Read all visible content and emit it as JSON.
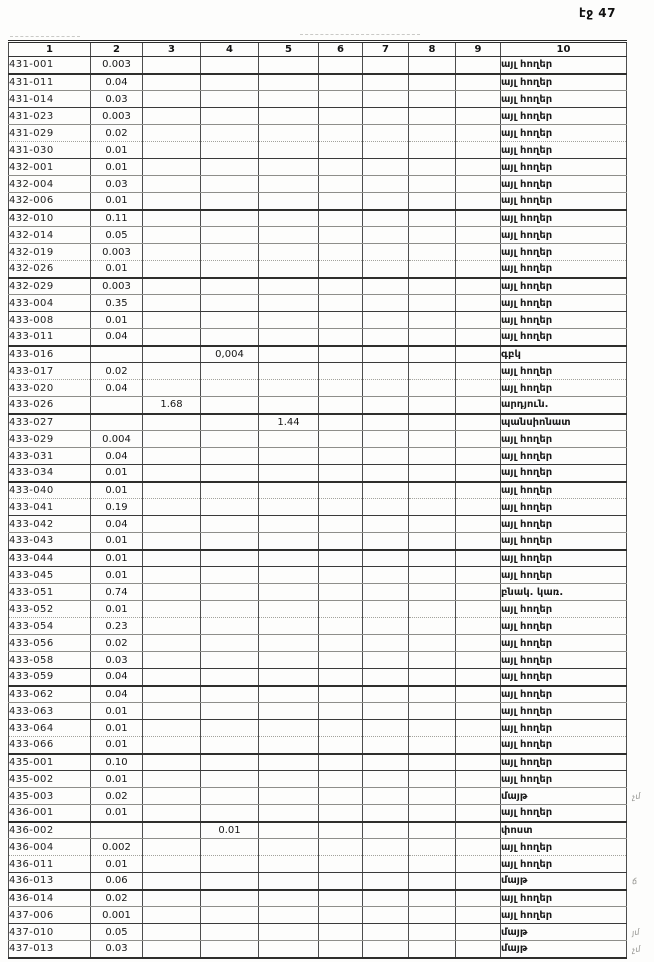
{
  "page_label": "էջ 47",
  "table": {
    "headers": [
      "1",
      "2",
      "3",
      "4",
      "5",
      "6",
      "7",
      "8",
      "9",
      "10"
    ],
    "rows": [
      [
        "431-001",
        "0.003",
        "",
        "",
        "",
        "",
        "",
        "",
        "",
        "այլ հողեր",
        ""
      ],
      [
        "431-011",
        "0.04",
        "",
        "",
        "",
        "",
        "",
        "",
        "",
        "այլ հողեր",
        ""
      ],
      [
        "431-014",
        "0.03",
        "",
        "",
        "",
        "",
        "",
        "",
        "",
        "այլ հողեր",
        ""
      ],
      [
        "431-023",
        "0.003",
        "",
        "",
        "",
        "",
        "",
        "",
        "",
        "այլ հողեր",
        ""
      ],
      [
        "431-029",
        "0.02",
        "",
        "",
        "",
        "",
        "",
        "",
        "",
        "այլ հողեր",
        ""
      ],
      [
        "431-030",
        "0.01",
        "",
        "",
        "",
        "",
        "",
        "",
        "",
        "այլ հողեր",
        ""
      ],
      [
        "432-001",
        "0.01",
        "",
        "",
        "",
        "",
        "",
        "",
        "",
        "այլ հողեր",
        ""
      ],
      [
        "432-004",
        "0.03",
        "",
        "",
        "",
        "",
        "",
        "",
        "",
        "այլ հողեր",
        ""
      ],
      [
        "432-006",
        "0.01",
        "",
        "",
        "",
        "",
        "",
        "",
        "",
        "այլ հողեր",
        ""
      ],
      [
        "432-010",
        "0.11",
        "",
        "",
        "",
        "",
        "",
        "",
        "",
        "այլ հողեր",
        ""
      ],
      [
        "432-014",
        "0.05",
        "",
        "",
        "",
        "",
        "",
        "",
        "",
        "այլ հողեր",
        ""
      ],
      [
        "432-019",
        "0.003",
        "",
        "",
        "",
        "",
        "",
        "",
        "",
        "այլ հողեր",
        ""
      ],
      [
        "432-026",
        "0.01",
        "",
        "",
        "",
        "",
        "",
        "",
        "",
        "այլ հողեր",
        ""
      ],
      [
        "432-029",
        "0.003",
        "",
        "",
        "",
        "",
        "",
        "",
        "",
        "այլ հողեր",
        ""
      ],
      [
        "433-004",
        "0.35",
        "",
        "",
        "",
        "",
        "",
        "",
        "",
        "այլ հողեր",
        ""
      ],
      [
        "433-008",
        "0.01",
        "",
        "",
        "",
        "",
        "",
        "",
        "",
        "այլ հողեր",
        ""
      ],
      [
        "433-011",
        "0.04",
        "",
        "",
        "",
        "",
        "",
        "",
        "",
        "այլ հողեր",
        ""
      ],
      [
        "433-016",
        "",
        "",
        "0,004",
        "",
        "",
        "",
        "",
        "",
        "գբկ",
        ""
      ],
      [
        "433-017",
        "0.02",
        "",
        "",
        "",
        "",
        "",
        "",
        "",
        "այլ հողեր",
        ""
      ],
      [
        "433-020",
        "0.04",
        "",
        "",
        "",
        "",
        "",
        "",
        "",
        "այլ հողեր",
        ""
      ],
      [
        "433-026",
        "",
        "1.68",
        "",
        "",
        "",
        "",
        "",
        "",
        "արդյուն.",
        ""
      ],
      [
        "433-027",
        "",
        "",
        "",
        "1.44",
        "",
        "",
        "",
        "",
        "պանսիոնատ",
        ""
      ],
      [
        "433-029",
        "0.004",
        "",
        "",
        "",
        "",
        "",
        "",
        "",
        "այլ հողեր",
        ""
      ],
      [
        "433-031",
        "0.04",
        "",
        "",
        "",
        "",
        "",
        "",
        "",
        "այլ հողեր",
        ""
      ],
      [
        "433-034",
        "0.01",
        "",
        "",
        "",
        "",
        "",
        "",
        "",
        "այլ հողեր",
        ""
      ],
      [
        "433-040",
        "0.01",
        "",
        "",
        "",
        "",
        "",
        "",
        "",
        "այլ հողեր",
        ""
      ],
      [
        "433-041",
        "0.19",
        "",
        "",
        "",
        "",
        "",
        "",
        "",
        "այլ հողեր",
        ""
      ],
      [
        "433-042",
        "0.04",
        "",
        "",
        "",
        "",
        "",
        "",
        "",
        "այլ հողեր",
        ""
      ],
      [
        "433-043",
        "0.01",
        "",
        "",
        "",
        "",
        "",
        "",
        "",
        "այլ հողեր",
        ""
      ],
      [
        "433-044",
        "0.01",
        "",
        "",
        "",
        "",
        "",
        "",
        "",
        "այլ հողեր",
        ""
      ],
      [
        "433-045",
        "0.01",
        "",
        "",
        "",
        "",
        "",
        "",
        "",
        "այլ հողեր",
        ""
      ],
      [
        "433-051",
        "0.74",
        "",
        "",
        "",
        "",
        "",
        "",
        "",
        "բնակ. կառ.",
        ""
      ],
      [
        "433-052",
        "0.01",
        "",
        "",
        "",
        "",
        "",
        "",
        "",
        "այլ հողեր",
        ""
      ],
      [
        "433-054",
        "0.23",
        "",
        "",
        "",
        "",
        "",
        "",
        "",
        "այլ հողեր",
        ""
      ],
      [
        "433-056",
        "0.02",
        "",
        "",
        "",
        "",
        "",
        "",
        "",
        "այլ հողեր",
        ""
      ],
      [
        "433-058",
        "0.03",
        "",
        "",
        "",
        "",
        "",
        "",
        "",
        "այլ հողեր",
        ""
      ],
      [
        "433-059",
        "0.04",
        "",
        "",
        "",
        "",
        "",
        "",
        "",
        "այլ հողեր",
        ""
      ],
      [
        "433-062",
        "0.04",
        "",
        "",
        "",
        "",
        "",
        "",
        "",
        "այլ հողեր",
        ""
      ],
      [
        "433-063",
        "0.01",
        "",
        "",
        "",
        "",
        "",
        "",
        "",
        "այլ հողեր",
        ""
      ],
      [
        "433-064",
        "0.01",
        "",
        "",
        "",
        "",
        "",
        "",
        "",
        "այլ հողեր",
        ""
      ],
      [
        "433-066",
        "0.01",
        "",
        "",
        "",
        "",
        "",
        "",
        "",
        "այլ հողեր",
        ""
      ],
      [
        "435-001",
        "0.10",
        "",
        "",
        "",
        "",
        "",
        "",
        "",
        "այլ հողեր",
        ""
      ],
      [
        "435-002",
        "0.01",
        "",
        "",
        "",
        "",
        "",
        "",
        "",
        "այլ հողեր",
        ""
      ],
      [
        "435-003",
        "0.02",
        "",
        "",
        "",
        "",
        "",
        "",
        "",
        "մայթ",
        "չմ"
      ],
      [
        "436-001",
        "0.01",
        "",
        "",
        "",
        "",
        "",
        "",
        "",
        "այլ հողեր",
        ""
      ],
      [
        "436-002",
        "",
        "",
        "0.01",
        "",
        "",
        "",
        "",
        "",
        "փոստ",
        ""
      ],
      [
        "436-004",
        "0.002",
        "",
        "",
        "",
        "",
        "",
        "",
        "",
        "այլ հողեր",
        ""
      ],
      [
        "436-011",
        "0.01",
        "",
        "",
        "",
        "",
        "",
        "",
        "",
        "այլ հողեր",
        ""
      ],
      [
        "436-013",
        "0.06",
        "",
        "",
        "",
        "",
        "",
        "",
        "",
        "մայթ",
        "ճ"
      ],
      [
        "436-014",
        "0.02",
        "",
        "",
        "",
        "",
        "",
        "",
        "",
        "այլ հողեր",
        ""
      ],
      [
        "437-006",
        "0.001",
        "",
        "",
        "",
        "",
        "",
        "",
        "",
        "այլ հողեր",
        ""
      ],
      [
        "437-010",
        "0.05",
        "",
        "",
        "",
        "",
        "",
        "",
        "",
        "մայթ",
        "յմ"
      ],
      [
        "437-013",
        "0.03",
        "",
        "",
        "",
        "",
        "",
        "",
        "",
        "մայթ",
        "չմ"
      ]
    ]
  }
}
